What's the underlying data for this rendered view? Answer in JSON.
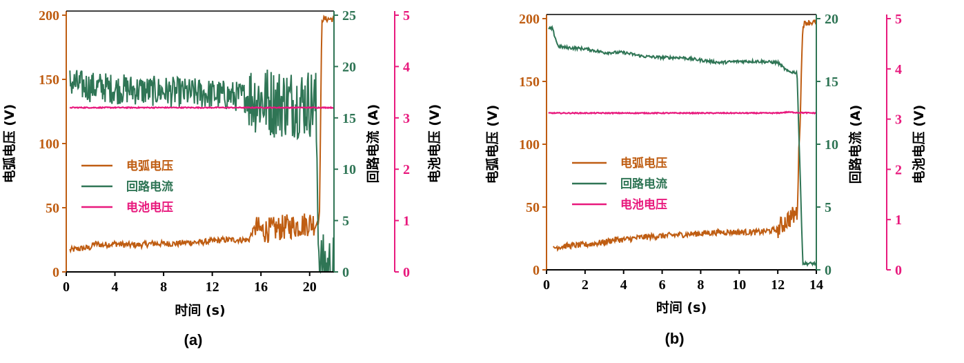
{
  "colors": {
    "arc_voltage": "#bf5d12",
    "loop_current": "#2f7555",
    "battery_voltage": "#e8197d",
    "axis": "#000000"
  },
  "chart_data": [
    {
      "type": "line",
      "panel_label": "(a)",
      "xlabel": "时间 (s)",
      "xlim": [
        0,
        22
      ],
      "xticks": [
        0,
        4,
        8,
        12,
        16,
        20
      ],
      "axes": [
        {
          "side": "left",
          "label": "电弧电压 (V)",
          "lim": [
            0,
            200
          ],
          "ticks": [
            0,
            50,
            100,
            150,
            200
          ],
          "color": "#bf5d12"
        },
        {
          "side": "right",
          "label": "回路电流 (A)",
          "lim": [
            0,
            25
          ],
          "ticks": [
            0,
            5,
            10,
            15,
            20,
            25
          ],
          "color": "#2f7555"
        },
        {
          "side": "right-outer",
          "label": "电池电压 (V)",
          "lim": [
            0,
            5
          ],
          "ticks": [
            0,
            1,
            2,
            3,
            4,
            5
          ],
          "color": "#e8197d"
        }
      ],
      "legend": {
        "placement": "center-left"
      },
      "series": [
        {
          "name": "电弧电压",
          "axis": 0,
          "color": "#bf5d12",
          "x": [
            0.3,
            1,
            2,
            2.3,
            3,
            4,
            5,
            6,
            7,
            8,
            9,
            10,
            11,
            12,
            13,
            14,
            15,
            15.5,
            16,
            17,
            18,
            19,
            20,
            20.5,
            20.8,
            21,
            22
          ],
          "y": [
            17,
            18,
            19,
            22,
            21,
            22,
            21,
            21,
            22,
            22,
            22,
            23,
            23,
            24,
            25,
            25,
            25,
            35,
            32,
            33,
            35,
            36,
            38,
            38,
            40,
            197,
            197
          ]
        },
        {
          "name": "回路电流",
          "axis": 1,
          "color": "#2f7555",
          "x": [
            0.3,
            1,
            2,
            3,
            4,
            5,
            6,
            7,
            8,
            9,
            10,
            11,
            12,
            13,
            14,
            15,
            16,
            17,
            18,
            19,
            20,
            20.5,
            20.8,
            21,
            22
          ],
          "y": [
            18.5,
            18.2,
            18,
            18,
            17.8,
            17.8,
            17.7,
            17.6,
            17.6,
            17.5,
            17.4,
            17.4,
            17.3,
            17.2,
            17.1,
            17,
            16.8,
            16.5,
            16.5,
            16.5,
            16.5,
            16.3,
            0.3,
            0.3,
            0.3
          ]
        },
        {
          "name": "电池电压",
          "axis": 2,
          "color": "#e8197d",
          "x": [
            0.3,
            22
          ],
          "y": [
            3.2,
            3.2
          ]
        }
      ]
    },
    {
      "type": "line",
      "panel_label": "(b)",
      "xlabel": "时间 (s)",
      "xlim": [
        0,
        14
      ],
      "xticks": [
        0,
        2,
        4,
        6,
        8,
        10,
        12,
        14
      ],
      "axes": [
        {
          "side": "left",
          "label": "电弧电压 (V)",
          "lim": [
            0,
            200
          ],
          "ticks": [
            0,
            50,
            100,
            150,
            200
          ],
          "color": "#bf5d12"
        },
        {
          "side": "right",
          "label": "回路电流 (A)",
          "lim": [
            0,
            20
          ],
          "ticks": [
            0,
            5,
            10,
            15,
            20
          ],
          "color": "#2f7555"
        },
        {
          "side": "right-outer",
          "label": "电池电压 (V)",
          "lim": [
            0,
            5
          ],
          "ticks": [
            0,
            1,
            2,
            3,
            4,
            5
          ],
          "color": "#e8197d"
        }
      ],
      "legend": {
        "placement": "center-left"
      },
      "series": [
        {
          "name": "电弧电压",
          "axis": 0,
          "color": "#bf5d12",
          "x": [
            0.35,
            0.5,
            1,
            2,
            3,
            3.5,
            4,
            5,
            6,
            7,
            8,
            9,
            10,
            11,
            12,
            12.5,
            13,
            13.3,
            13.5,
            14
          ],
          "y": [
            17,
            18,
            19,
            20,
            22,
            24,
            24,
            26,
            27,
            28,
            29,
            30,
            30,
            30,
            32,
            40,
            45,
            195,
            197,
            197
          ]
        },
        {
          "name": "回路电流",
          "axis": 1,
          "color": "#2f7555",
          "x": [
            0.1,
            0.3,
            0.6,
            1,
            2,
            3,
            4,
            5,
            6,
            7,
            8,
            9,
            10,
            11,
            12,
            12.5,
            13,
            13.3,
            13.5,
            14
          ],
          "y": [
            19.2,
            19.2,
            17.8,
            17.7,
            17.6,
            17.3,
            17.3,
            17.0,
            16.9,
            16.9,
            16.7,
            16.5,
            16.6,
            16.6,
            16.5,
            15.8,
            15.7,
            0.5,
            0.5,
            0.5
          ]
        },
        {
          "name": "电池电压",
          "axis": 2,
          "color": "#e8197d",
          "x": [
            0.1,
            12,
            12.5,
            13,
            14
          ],
          "y": [
            3.12,
            3.12,
            3.14,
            3.13,
            3.12
          ]
        }
      ]
    }
  ]
}
